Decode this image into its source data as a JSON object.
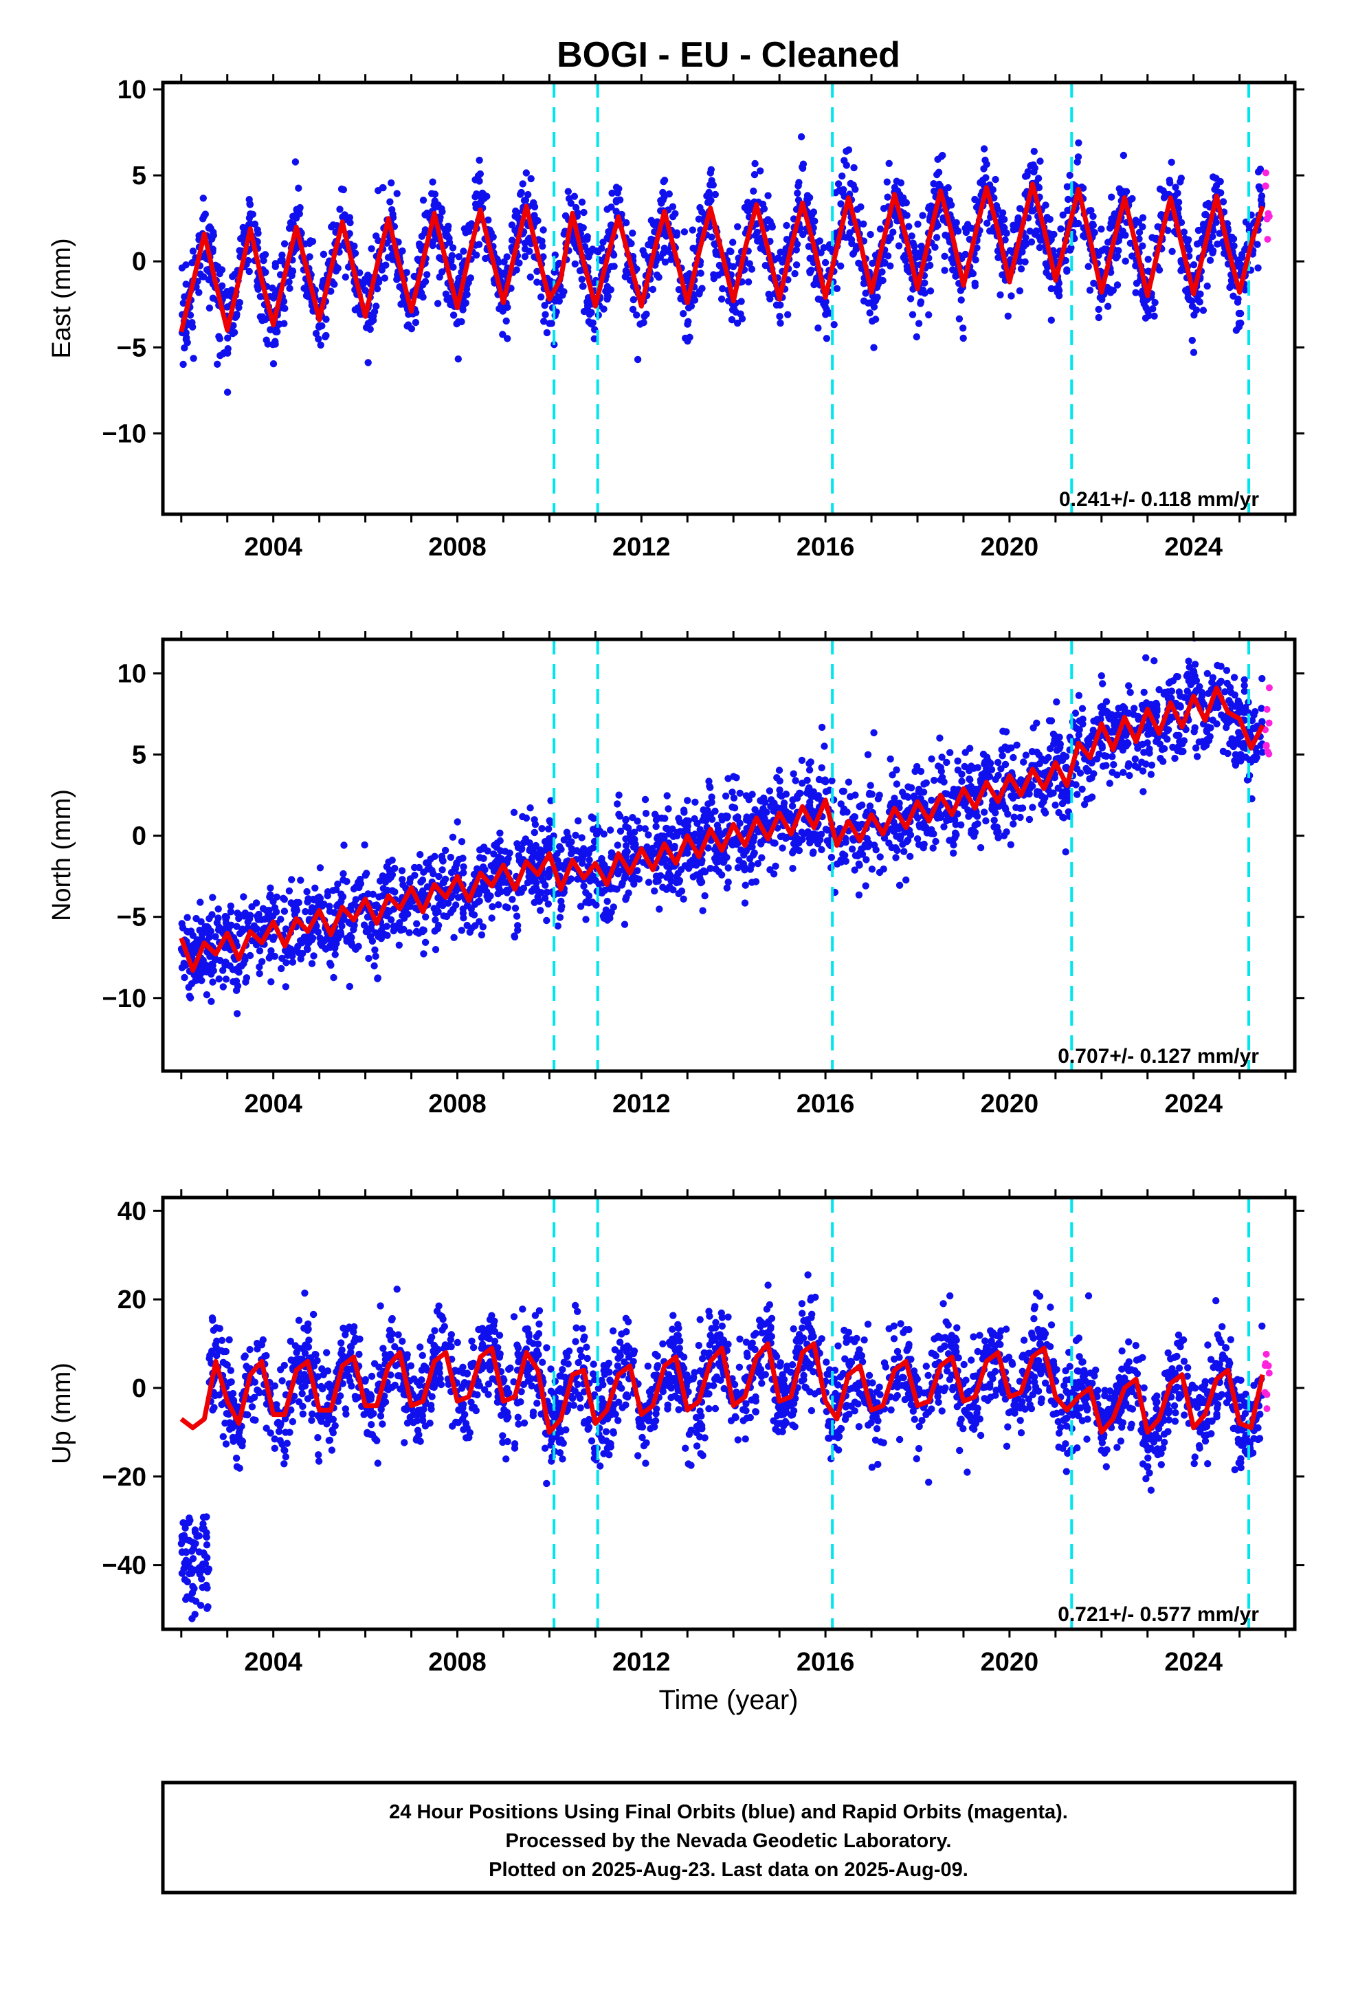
{
  "chart_data": {
    "title": "BOGI  - EU - Cleaned",
    "type": "scatter",
    "x_axis": {
      "label": "Time (year)",
      "range": [
        2001.6,
        2026.2
      ],
      "ticks": [
        2004,
        2008,
        2012,
        2016,
        2020,
        2024
      ],
      "tick_labels": [
        "2004",
        "2008",
        "2012",
        "2016",
        "2020",
        "2024"
      ]
    },
    "equipment_changes_years": [
      2010.1,
      2011.05,
      2016.15,
      2021.35,
      2025.2
    ],
    "colors": {
      "final_orbits": "#1010ee",
      "rapid_orbits": "#ff22dd",
      "model_fit": "#ee0000",
      "equipment_change": "#00e5ee"
    },
    "legend_note": "24 Hour Positions Using Final Orbits (blue) and Rapid Orbits (magenta).",
    "panels": [
      {
        "component": "East",
        "ylabel": "East (mm)",
        "ylim": [
          -14.7,
          10.4
        ],
        "yticks": [
          -10,
          -5,
          0,
          5,
          10
        ],
        "ytick_labels": [
          "−10",
          "−5",
          "0",
          "5",
          "10"
        ],
        "rate_text": "0.241+/- 0.118 mm/yr",
        "rate_mm_per_yr": 0.241,
        "rate_sigma": 0.118,
        "model_series": {
          "name": "",
          "x": [
            2002.0,
            2002.25,
            2002.5,
            2002.75,
            2003.0,
            2003.25,
            2003.5,
            2003.75,
            2004.0,
            2004.25,
            2004.5,
            2004.75,
            2005.0,
            2005.25,
            2005.5,
            2005.75,
            2006.0,
            2006.25,
            2006.5,
            2006.75,
            2007.0,
            2007.25,
            2007.5,
            2007.75,
            2008.0,
            2008.25,
            2008.5,
            2008.75,
            2009.0,
            2009.25,
            2009.5,
            2009.75,
            2010.0,
            2010.25,
            2010.5,
            2010.75,
            2011.0,
            2011.25,
            2011.5,
            2011.75,
            2012.0,
            2012.25,
            2012.5,
            2012.75,
            2013.0,
            2013.25,
            2013.5,
            2013.75,
            2014.0,
            2014.25,
            2014.5,
            2014.75,
            2015.0,
            2015.25,
            2015.5,
            2015.75,
            2016.0,
            2016.25,
            2016.5,
            2016.75,
            2017.0,
            2017.25,
            2017.5,
            2017.75,
            2018.0,
            2018.25,
            2018.5,
            2018.75,
            2019.0,
            2019.25,
            2019.5,
            2019.75,
            2020.0,
            2020.25,
            2020.5,
            2020.75,
            2021.0,
            2021.25,
            2021.5,
            2021.75,
            2022.0,
            2022.25,
            2022.5,
            2022.75,
            2023.0,
            2023.25,
            2023.5,
            2023.75,
            2024.0,
            2024.25,
            2024.5,
            2024.75,
            2025.0,
            2025.25,
            2025.5
          ],
          "y": [
            -4.1,
            -1.3,
            1.6,
            -1.3,
            -4.0,
            -1.1,
            1.9,
            -1.1,
            -3.7,
            -0.8,
            2.0,
            -0.7,
            -3.4,
            -0.5,
            2.3,
            -0.5,
            -3.2,
            -0.3,
            2.5,
            -0.3,
            -2.9,
            0.0,
            2.8,
            0.0,
            -2.7,
            0.3,
            3.0,
            0.3,
            -2.4,
            0.5,
            3.2,
            0.4,
            -2.2,
            -1.0,
            2.8,
            -0.1,
            -2.6,
            0.1,
            2.6,
            0.0,
            -2.6,
            0.3,
            2.9,
            0.3,
            -2.4,
            0.5,
            3.1,
            0.5,
            -2.3,
            0.7,
            3.3,
            0.7,
            -2.2,
            0.8,
            3.4,
            0.9,
            -2.1,
            0.8,
            3.7,
            1.2,
            -1.8,
            1.1,
            3.9,
            1.4,
            -1.6,
            1.3,
            4.1,
            1.6,
            -1.4,
            1.5,
            4.3,
            1.8,
            -1.2,
            1.7,
            4.5,
            1.9,
            -1.1,
            1.5,
            4.2,
            1.3,
            -1.8,
            1.0,
            3.7,
            0.9,
            -2.0,
            0.9,
            3.7,
            0.9,
            -1.9,
            0.9,
            3.8,
            0.8,
            -1.8,
            1.0,
            3.2
          ]
        }
      },
      {
        "component": "North",
        "ylabel": "North (mm)",
        "ylim": [
          -14.5,
          12.1
        ],
        "yticks": [
          -10,
          -5,
          0,
          5,
          10
        ],
        "ytick_labels": [
          "−10",
          "−5",
          "0",
          "5",
          "10"
        ],
        "rate_text": "0.707+/- 0.127 mm/yr",
        "rate_mm_per_yr": 0.707,
        "rate_sigma": 0.127,
        "model_series": {
          "name": "",
          "x": [
            2002.0,
            2002.25,
            2002.5,
            2002.75,
            2003.0,
            2003.25,
            2003.5,
            2003.75,
            2004.0,
            2004.25,
            2004.5,
            2004.75,
            2005.0,
            2005.25,
            2005.5,
            2005.75,
            2006.0,
            2006.25,
            2006.5,
            2006.75,
            2007.0,
            2007.25,
            2007.5,
            2007.75,
            2008.0,
            2008.25,
            2008.5,
            2008.75,
            2009.0,
            2009.25,
            2009.5,
            2009.75,
            2010.0,
            2010.25,
            2010.5,
            2010.75,
            2011.0,
            2011.25,
            2011.5,
            2011.75,
            2012.0,
            2012.25,
            2012.5,
            2012.75,
            2013.0,
            2013.25,
            2013.5,
            2013.75,
            2014.0,
            2014.25,
            2014.5,
            2014.75,
            2015.0,
            2015.25,
            2015.5,
            2015.75,
            2016.0,
            2016.25,
            2016.5,
            2016.75,
            2017.0,
            2017.25,
            2017.5,
            2017.75,
            2018.0,
            2018.25,
            2018.5,
            2018.75,
            2019.0,
            2019.25,
            2019.5,
            2019.75,
            2020.0,
            2020.25,
            2020.5,
            2020.75,
            2021.0,
            2021.25,
            2021.5,
            2021.75,
            2022.0,
            2022.25,
            2022.5,
            2022.75,
            2023.0,
            2023.25,
            2023.5,
            2023.75,
            2024.0,
            2024.25,
            2024.5,
            2024.75,
            2025.0,
            2025.25,
            2025.5
          ],
          "y": [
            -6.3,
            -8.3,
            -6.6,
            -7.3,
            -6.0,
            -7.6,
            -5.9,
            -6.6,
            -5.3,
            -6.8,
            -5.1,
            -5.9,
            -4.6,
            -6.1,
            -4.4,
            -5.2,
            -3.9,
            -5.4,
            -3.7,
            -4.5,
            -3.2,
            -4.7,
            -3.0,
            -3.8,
            -2.5,
            -4.0,
            -2.3,
            -3.1,
            -1.8,
            -3.3,
            -1.6,
            -2.4,
            -1.1,
            -3.3,
            -1.5,
            -2.6,
            -1.7,
            -3.0,
            -1.1,
            -2.3,
            -0.8,
            -2.1,
            -0.5,
            -1.7,
            0.0,
            -1.3,
            0.4,
            -0.9,
            0.7,
            -0.6,
            1.1,
            -0.2,
            1.4,
            0.1,
            1.8,
            0.5,
            2.2,
            -0.6,
            0.9,
            -0.3,
            1.3,
            0.1,
            1.7,
            0.5,
            2.1,
            0.9,
            2.5,
            1.3,
            2.9,
            1.7,
            3.3,
            2.1,
            3.7,
            2.5,
            4.1,
            2.9,
            4.5,
            3.1,
            5.7,
            4.8,
            6.9,
            5.3,
            7.3,
            5.8,
            7.8,
            6.3,
            8.2,
            6.7,
            8.6,
            7.1,
            9.1,
            7.6,
            7.2,
            5.4,
            6.8
          ]
        }
      },
      {
        "component": "Up",
        "ylabel": "Up (mm)",
        "ylim": [
          -54.5,
          43
        ],
        "yticks": [
          -40,
          -20,
          0,
          20,
          40
        ],
        "ytick_labels": [
          "−40",
          "−20",
          "0",
          "20",
          "40"
        ],
        "rate_text": "0.721+/- 0.577 mm/yr",
        "rate_mm_per_yr": 0.721,
        "rate_sigma": 0.577,
        "model_series": {
          "name": "",
          "x": [
            2002.0,
            2002.25,
            2002.5,
            2002.75,
            2003.0,
            2003.25,
            2003.5,
            2003.75,
            2004.0,
            2004.25,
            2004.5,
            2004.75,
            2005.0,
            2005.25,
            2005.5,
            2005.75,
            2006.0,
            2006.25,
            2006.5,
            2006.75,
            2007.0,
            2007.25,
            2007.5,
            2007.75,
            2008.0,
            2008.25,
            2008.5,
            2008.75,
            2009.0,
            2009.25,
            2009.5,
            2009.75,
            2010.0,
            2010.25,
            2010.5,
            2010.75,
            2011.0,
            2011.25,
            2011.5,
            2011.75,
            2012.0,
            2012.25,
            2012.5,
            2012.75,
            2013.0,
            2013.25,
            2013.5,
            2013.75,
            2014.0,
            2014.25,
            2014.5,
            2014.75,
            2015.0,
            2015.25,
            2015.5,
            2015.75,
            2016.0,
            2016.25,
            2016.5,
            2016.75,
            2017.0,
            2017.25,
            2017.5,
            2017.75,
            2018.0,
            2018.25,
            2018.5,
            2018.75,
            2019.0,
            2019.25,
            2019.5,
            2019.75,
            2020.0,
            2020.25,
            2020.5,
            2020.75,
            2021.0,
            2021.25,
            2021.5,
            2021.75,
            2022.0,
            2022.25,
            2022.5,
            2022.75,
            2023.0,
            2023.25,
            2023.5,
            2023.75,
            2024.0,
            2024.25,
            2024.5,
            2024.75,
            2025.0,
            2025.25,
            2025.5
          ],
          "y": [
            -7,
            -9,
            -7,
            6,
            -3,
            -8,
            3,
            6,
            -6,
            -6,
            4,
            6,
            -5,
            -5,
            5,
            7,
            -4,
            -4,
            5,
            8,
            -4,
            -3,
            6,
            8,
            -3,
            -2,
            7,
            9,
            -3,
            -2,
            8,
            4,
            -10,
            -7,
            3,
            4,
            -8,
            -5,
            3,
            5,
            -6,
            -4,
            5,
            7,
            -5,
            -3,
            6,
            9,
            -4,
            -2,
            7,
            10,
            -3,
            -2,
            8,
            10,
            -3,
            -7,
            3,
            5,
            -5,
            -4,
            4,
            6,
            -4,
            -3,
            5,
            7,
            -3,
            -2,
            6,
            8,
            -2,
            -1,
            7,
            9,
            -2,
            -5,
            -2,
            0,
            -10,
            -7,
            0,
            2,
            -10,
            -7,
            1,
            3,
            -9,
            -6,
            2,
            4,
            -8,
            -9,
            3
          ]
        }
      }
    ]
  },
  "caption": {
    "line1": "24 Hour Positions Using Final Orbits (blue) and Rapid Orbits (magenta).",
    "line2": "Processed by the Nevada Geodetic Laboratory.",
    "line3": "Plotted on 2025-Aug-23. Last data on 2025-Aug-09."
  }
}
